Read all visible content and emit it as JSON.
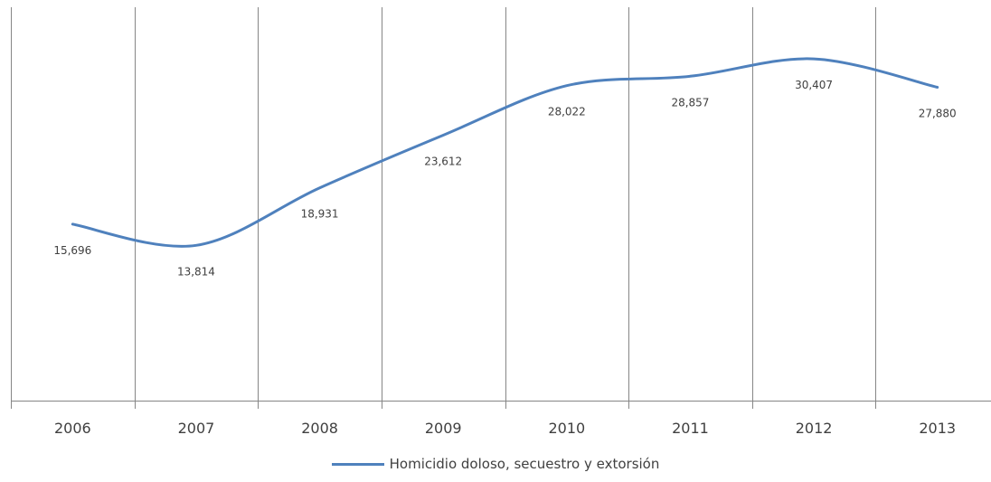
{
  "chart_data": {
    "type": "line",
    "title": "",
    "xlabel": "",
    "ylabel": "",
    "categories": [
      "2006",
      "2007",
      "2008",
      "2009",
      "2010",
      "2011",
      "2012",
      "2013"
    ],
    "series": [
      {
        "name": "Homicidio doloso, secuestro y extorsión",
        "values": [
          15696,
          13814,
          18931,
          23612,
          28022,
          28857,
          30407,
          27880
        ],
        "labels": [
          "15,696",
          "13,814",
          "18,931",
          "23,612",
          "28,022",
          "28,857",
          "30,407",
          "27,880"
        ],
        "color": "#4F81BD",
        "smooth": true
      }
    ],
    "ylim": [
      0,
      35000
    ],
    "grid": "vertical",
    "legend": "bottom",
    "axis_color": "#868686",
    "text_color": "#404040"
  }
}
